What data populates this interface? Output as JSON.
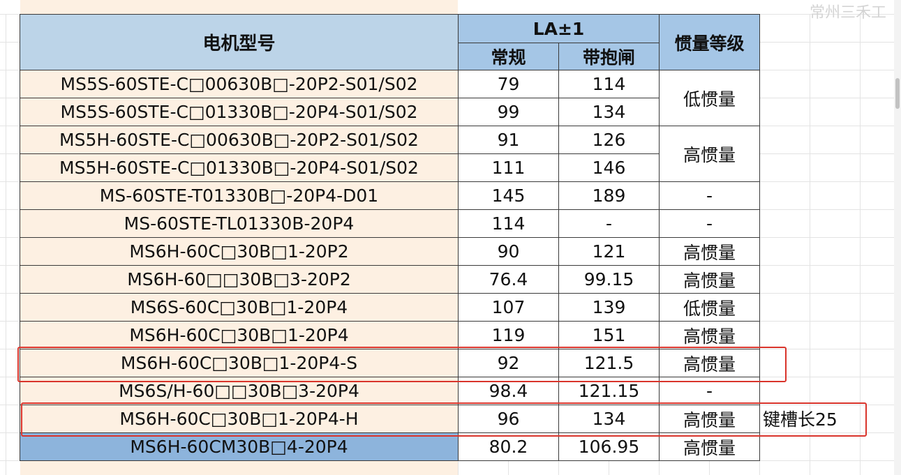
{
  "header": {
    "model": "电机型号",
    "la": "LA±1",
    "normal": "常规",
    "brake": "带抱闸",
    "inertia": "惯量等级"
  },
  "rows": [
    {
      "model": "MS5S-60STE-C□00630B□-20P2-S01/S02",
      "normal": "79",
      "brake": "114"
    },
    {
      "model": "MS5S-60STE-C□01330B□-20P4-S01/S02",
      "normal": "99",
      "brake": "134"
    },
    {
      "model": "MS5H-60STE-C□00630B□-20P2-S01/S02",
      "normal": "91",
      "brake": "126"
    },
    {
      "model": "MS5H-60STE-C□01330B□-20P4-S01/S02",
      "normal": "111",
      "brake": "146"
    },
    {
      "model": "MS-60STE-T01330B□-20P4-D01",
      "normal": "145",
      "brake": "189",
      "inertia": "-"
    },
    {
      "model": "MS-60STE-TL01330B-20P4",
      "normal": "114",
      "brake": "-",
      "inertia": "-"
    },
    {
      "model": "MS6H-60C□30B□1-20P2",
      "normal": "90",
      "brake": "121",
      "inertia": "高惯量"
    },
    {
      "model": "MS6H-60□□30B□3-20P2",
      "normal": "76.4",
      "brake": "99.15",
      "inertia": "高惯量"
    },
    {
      "model": "MS6S-60C□30B□1-20P4",
      "normal": "107",
      "brake": "139",
      "inertia": "低惯量"
    },
    {
      "model": "MS6H-60C□30B□1-20P4",
      "normal": "119",
      "brake": "151",
      "inertia": "高惯量"
    },
    {
      "model": "MS6H-60C□30B□1-20P4-S",
      "normal": "92",
      "brake": "121.5",
      "inertia": "高惯量"
    },
    {
      "model": "MS6S/H-60□□30B□3-20P4",
      "normal": "98.4",
      "brake": "121.15",
      "inertia": "-"
    },
    {
      "model": "MS6H-60C□30B□1-20P4-H",
      "normal": "96",
      "brake": "134",
      "inertia": "高惯量"
    },
    {
      "model": "MS6H-60CM30B□4-20P4",
      "normal": "80.2",
      "brake": "106.95",
      "inertia": "高惯量"
    }
  ],
  "merged_inertia": {
    "low": "低惯量",
    "high": "高惯量"
  },
  "note": "键槽长25",
  "watermark": "常州三禾工",
  "colors": {
    "header_blue": "#a5c6e6",
    "model_header": "#bcd4e8",
    "model_bg": "#fdf0e2",
    "last_model_bg": "#8db4dc",
    "highlight_red": "#d9342b"
  }
}
